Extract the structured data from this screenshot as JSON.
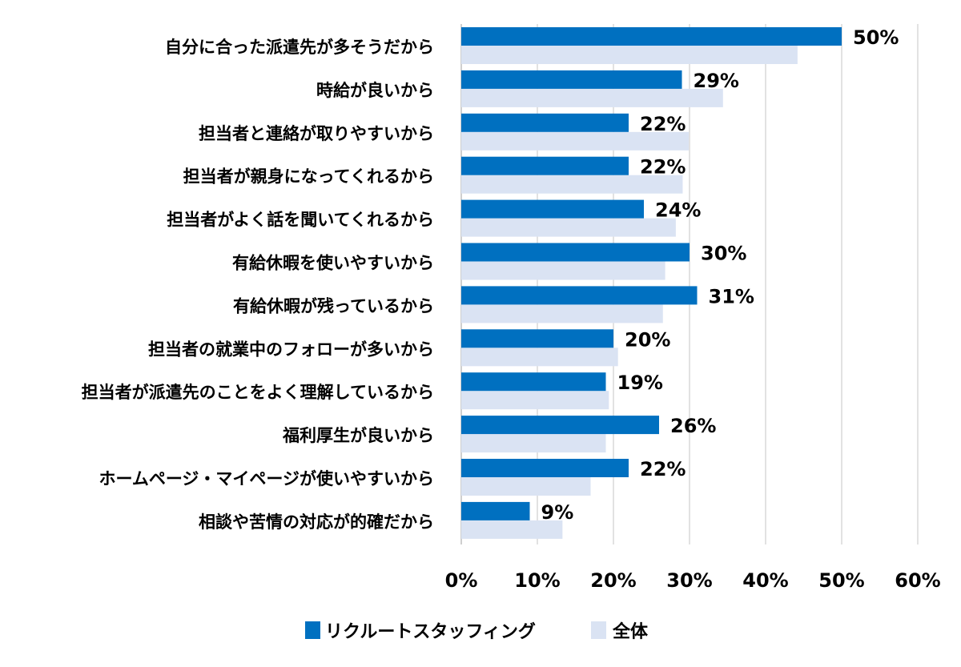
{
  "chart_data": {
    "type": "bar",
    "orientation": "horizontal",
    "categories": [
      "自分に合った派遣先が多そうだから",
      "時給が良いから",
      "担当者と連絡が取りやすいから",
      "担当者が親身になってくれるから",
      "担当者がよく話を聞いてくれるから",
      "有給休暇を使いやすいから",
      "有給休暇が残っているから",
      "担当者の就業中のフォローが多いから",
      "担当者が派遣先のことをよく理解しているから",
      "福利厚生が良いから",
      "ホームページ・マイページが使いやすいから",
      "相談や苦情の対応が的確だから"
    ],
    "series": [
      {
        "name": "リクルートスタッフィング",
        "color": "#0070C0",
        "values": [
          50,
          29,
          22,
          22,
          24,
          30,
          31,
          20,
          19,
          26,
          22,
          9
        ],
        "data_labels": [
          "50%",
          "29%",
          "22%",
          "22%",
          "24%",
          "30%",
          "31%",
          "20%",
          "19%",
          "26%",
          "22%",
          "9%"
        ]
      },
      {
        "name": "全体",
        "color": "#DAE3F3",
        "values": [
          44.2,
          34.4,
          29.9,
          29.1,
          28.2,
          26.8,
          26.5,
          20.6,
          19.4,
          19.0,
          17.0,
          13.3
        ]
      }
    ],
    "xlim": [
      0,
      60
    ],
    "xticks": [
      0,
      10,
      20,
      30,
      40,
      50,
      60
    ],
    "xtick_labels": [
      "0%",
      "10%",
      "20%",
      "30%",
      "40%",
      "50%",
      "60%"
    ],
    "grid": true,
    "legend_position": "bottom",
    "title": "",
    "xlabel": "",
    "ylabel": ""
  }
}
